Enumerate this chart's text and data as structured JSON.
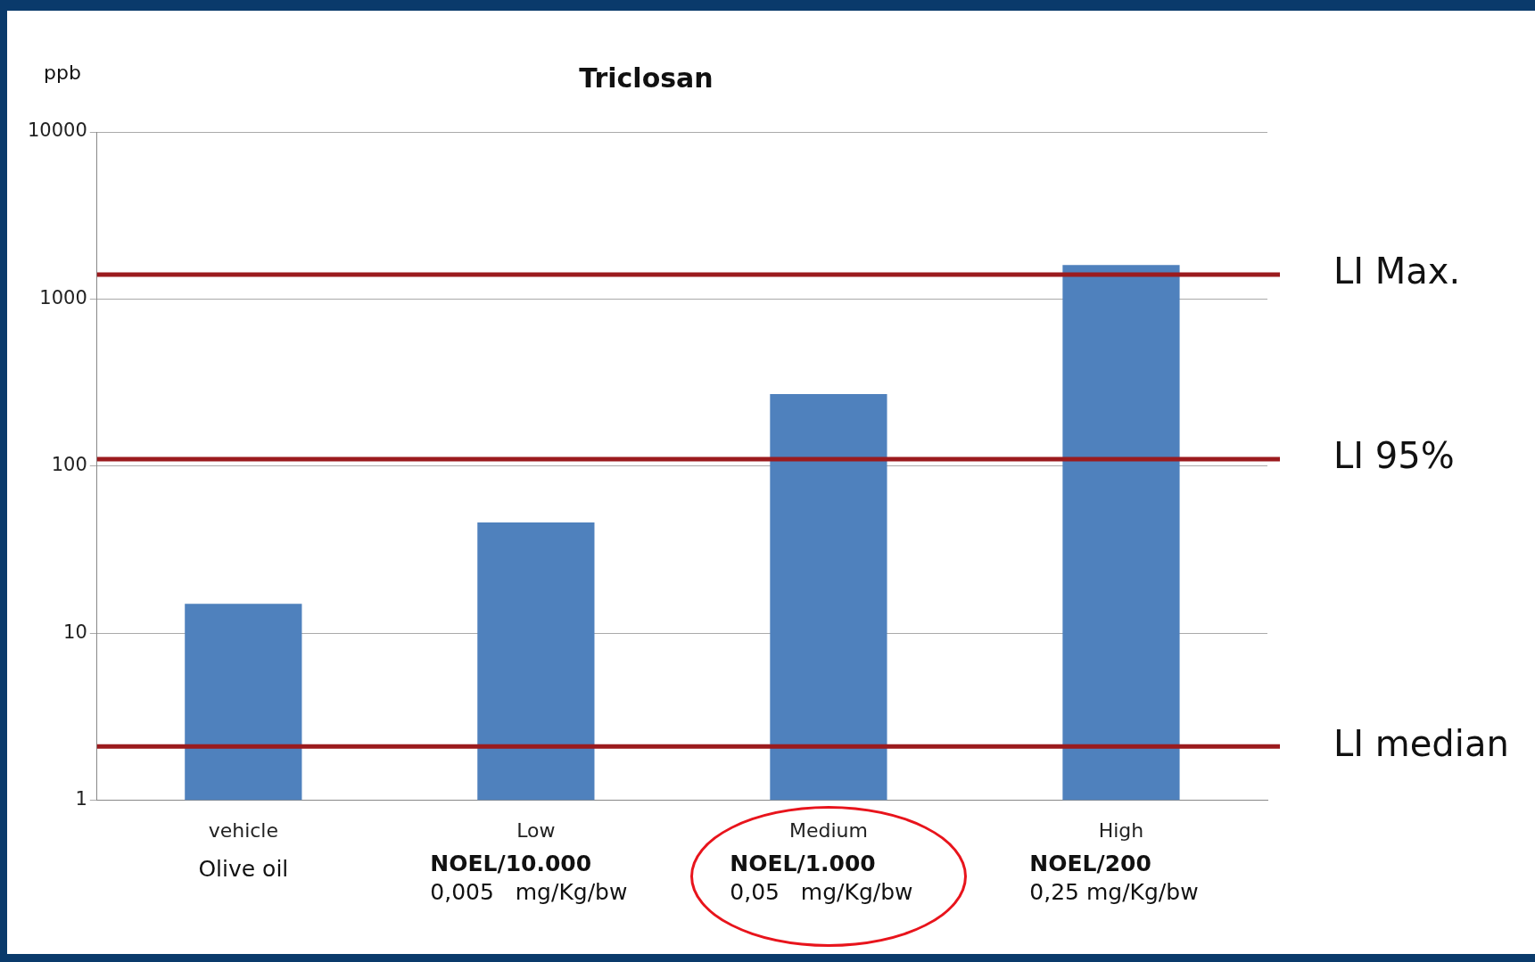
{
  "chart_data": {
    "type": "bar",
    "title": "Triclosan",
    "ylabel": "ppb",
    "categories": [
      "vehicle",
      "Low",
      "Medium",
      "High"
    ],
    "values": [
      15,
      46,
      270,
      1600
    ],
    "color": "#4f81bd",
    "log": true,
    "ylim": [
      1,
      10000
    ],
    "yticks": [
      1,
      10,
      100,
      1000,
      10000
    ],
    "grid": "y",
    "legend": false,
    "ref_lines": [
      {
        "axis": "y",
        "value": 1400,
        "label": "LI Max.",
        "color": "#9b1b1e"
      },
      {
        "axis": "y",
        "value": 110,
        "label": "LI 95%",
        "color": "#9b1b1e"
      },
      {
        "axis": "y",
        "value": 2.1,
        "label": "LI median",
        "color": "#9b1b1e"
      }
    ],
    "annotations": [
      "Olive oil",
      "NOEL/10.000",
      "0,005   mg/Kg/bw",
      "NOEL/1.000",
      "0,05   mg/Kg/bw",
      "NOEL/200",
      "0,25 mg/Kg/bw"
    ]
  }
}
